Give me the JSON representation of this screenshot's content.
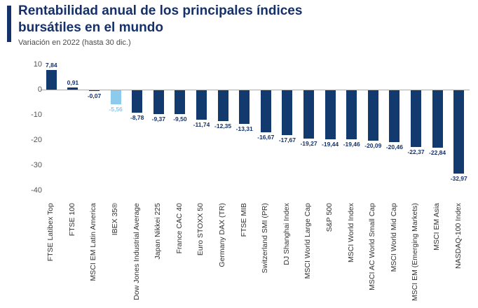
{
  "header": {
    "title": "Rentabilidad anual de los principales índices bursátiles en el mundo",
    "subtitle": "Variación en 2022 (hasta 30 dic.)"
  },
  "colors": {
    "bar": "#123a6e",
    "highlight_bar": "#8ccbeb",
    "value_label": "#14316b",
    "highlight_value_label": "#8ccbeb",
    "title": "#14316b"
  },
  "chart_data": {
    "type": "bar",
    "title": "Rentabilidad anual de los principales índices bursátiles en el mundo",
    "subtitle": "Variación en 2022 (hasta 30 dic.)",
    "categories": [
      "FTSE Latibex Top",
      "FTSE 100",
      "MSCI EM Latin America",
      "IBEX 35®",
      "Dow Jones Industrial Average",
      "Japan Nikkei 225",
      "France CAC 40",
      "Euro STOXX 50",
      "Germany DAX (TR)",
      "FTSE MIB",
      "Switzerland SMI (PR)",
      "DJ Shanghai Index",
      "MSCI World Large Cap",
      "S&P 500",
      "MSCI World Index",
      "MSCI AC World Small Cap",
      "MSCI World Mid Cap",
      "MSCI EM (Emerging Markets)",
      "MSCI EM Asia",
      "NASDAQ-100 Index"
    ],
    "values": [
      7.84,
      0.91,
      -0.07,
      -5.56,
      -8.78,
      -9.37,
      -9.5,
      -11.74,
      -12.35,
      -13.31,
      -16.67,
      -17.67,
      -19.27,
      -19.44,
      -19.46,
      -20.09,
      -20.46,
      -22.37,
      -22.84,
      -32.97
    ],
    "value_labels": [
      "7,84",
      "0,91",
      "-0,07",
      "-5,56",
      "-8,78",
      "-9,37",
      "-9,50",
      "-11,74",
      "-12,35",
      "-13,31",
      "-16,67",
      "-17,67",
      "-19,27",
      "-19,44",
      "-19,46",
      "-20,09",
      "-20,46",
      "-22,37",
      "-22,84",
      "-32,97"
    ],
    "highlight_index": 3,
    "xlabel": "",
    "ylabel": "",
    "ylim": [
      -40,
      10
    ],
    "yticks": [
      10,
      0,
      -10,
      -20,
      -30,
      -40
    ],
    "grid": false,
    "legend": false
  }
}
